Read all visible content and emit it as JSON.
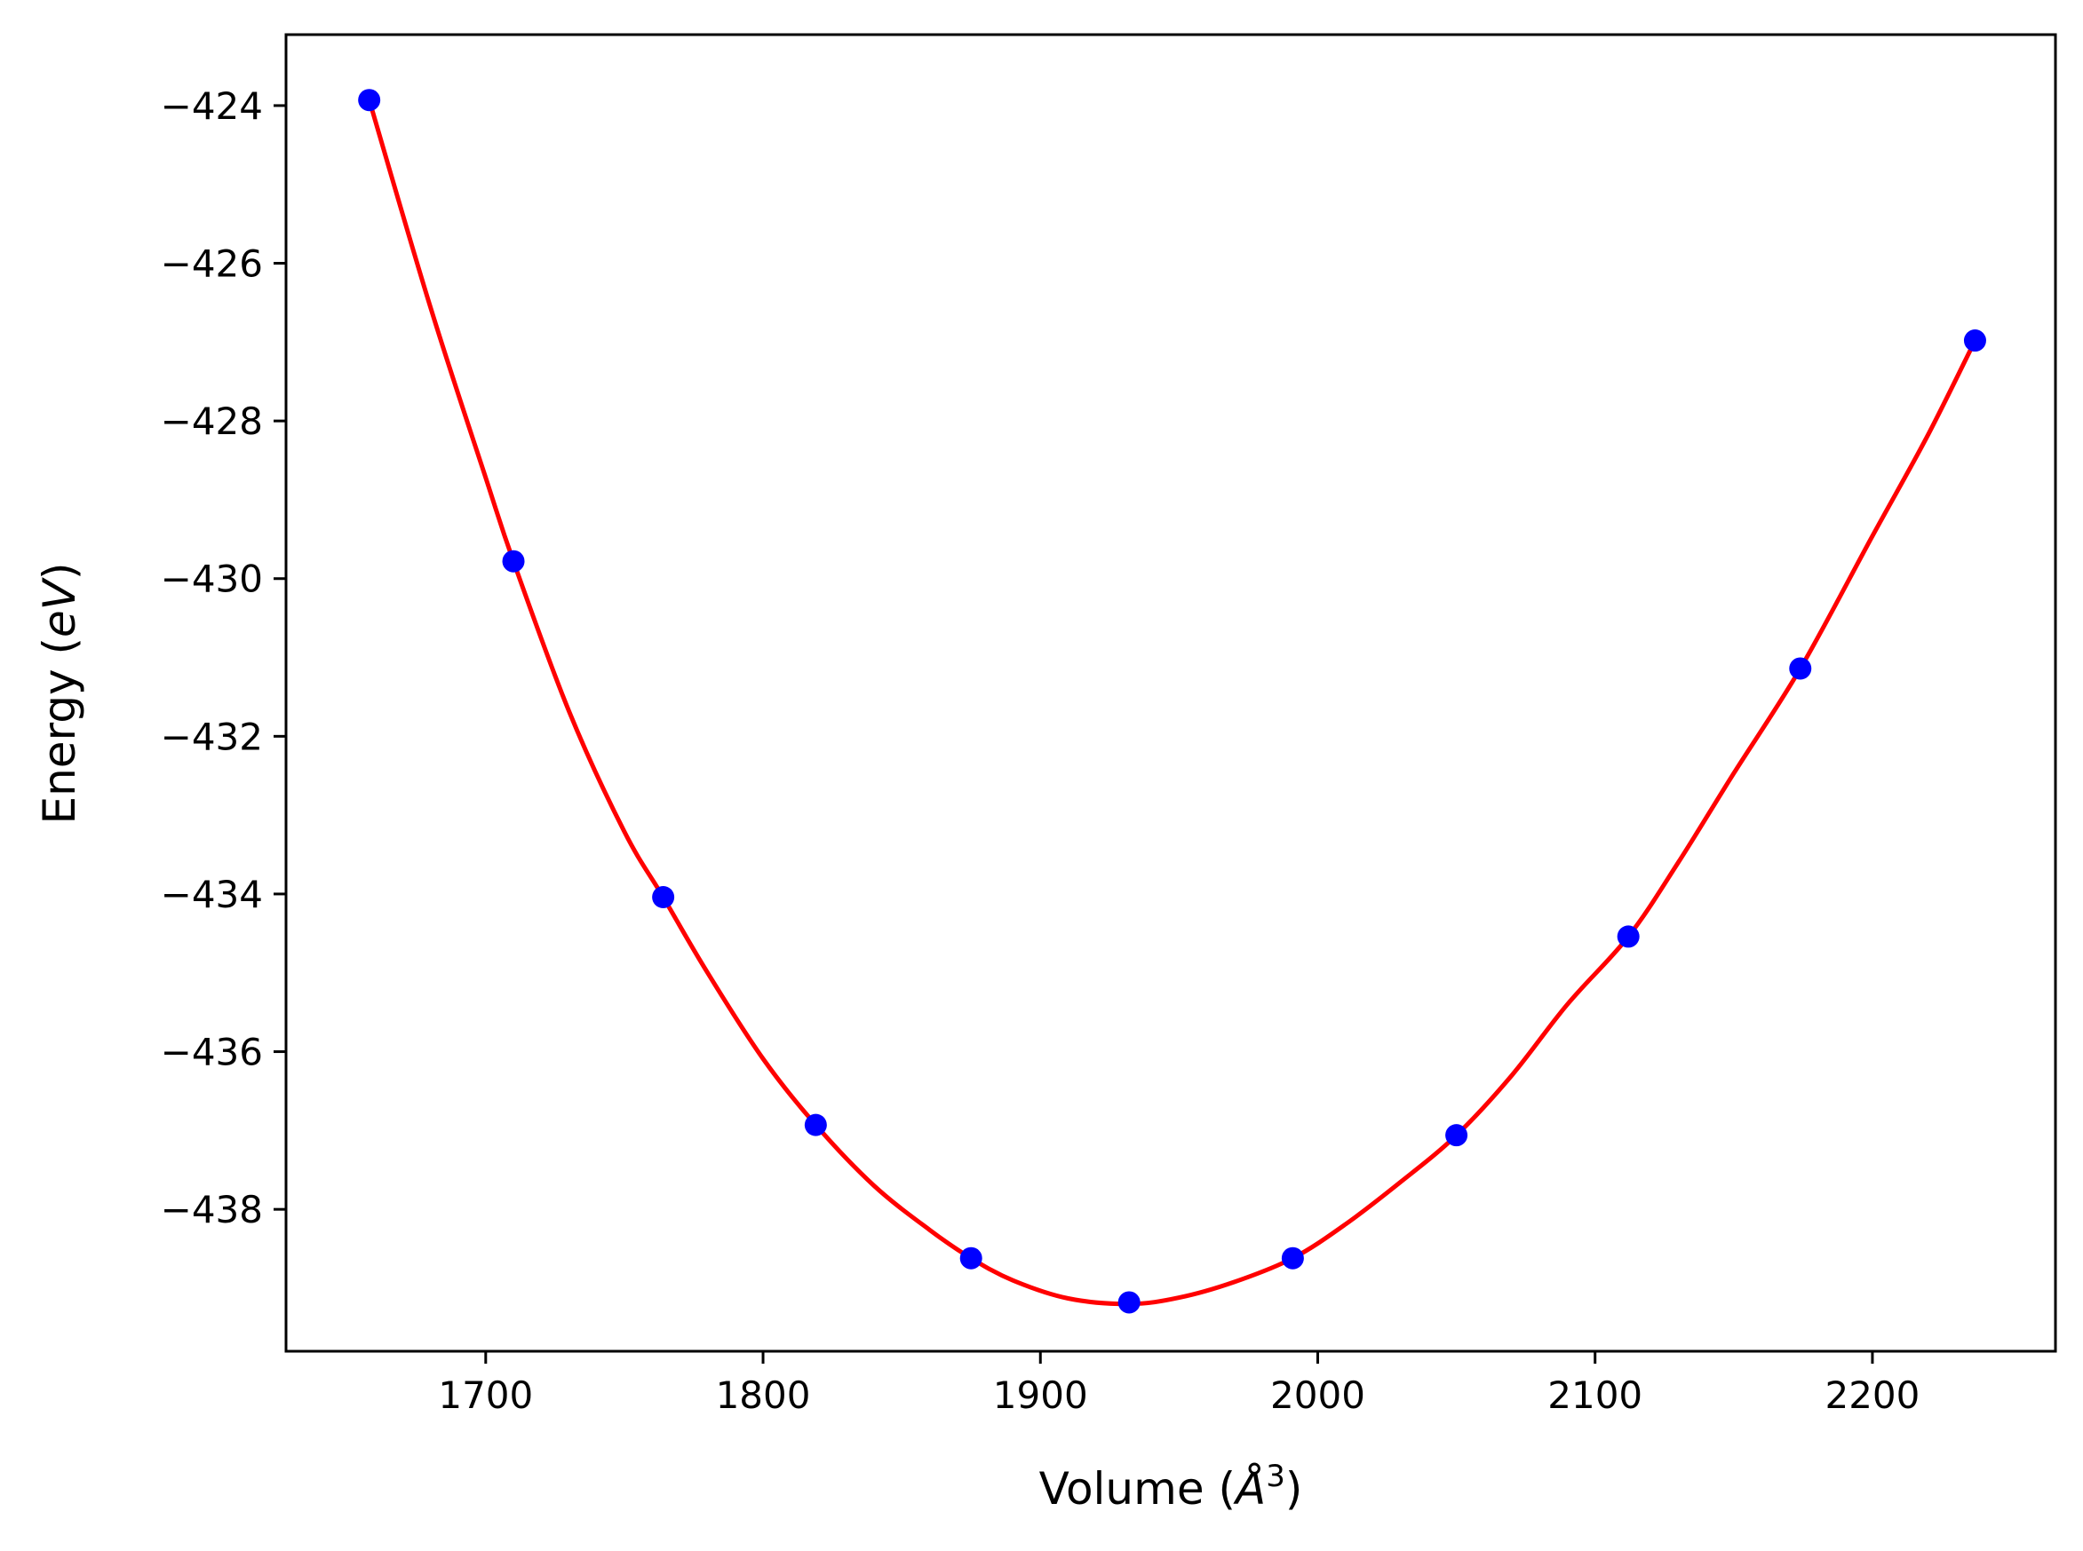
{
  "chart_data": {
    "type": "scatter",
    "title": "",
    "xlabel": {
      "prefix": "Volume (",
      "symbol": "Å",
      "exponent": "3",
      "suffix": ")"
    },
    "ylabel": {
      "prefix": "Energy (",
      "unit": "eV",
      "suffix": ")"
    },
    "xlim": [
      1628,
      2266
    ],
    "ylim": [
      -439.8,
      -423.1
    ],
    "xticks": [
      1700,
      1800,
      1900,
      2000,
      2100,
      2200
    ],
    "yticks": [
      -424,
      -426,
      -428,
      -430,
      -432,
      -434,
      -436,
      -438
    ],
    "xtick_labels": [
      "1700",
      "1800",
      "1900",
      "2000",
      "2100",
      "2200"
    ],
    "ytick_labels": [
      "−424",
      "−426",
      "−428",
      "−430",
      "−432",
      "−434",
      "−436",
      "−438"
    ],
    "grid": false,
    "series": [
      {
        "kind": "points",
        "color": "#0000ff",
        "x": [
          1658,
          1710,
          1764,
          1819,
          1875,
          1932,
          1991,
          2050,
          2112,
          2174,
          2237
        ],
        "y": [
          -423.93,
          -429.78,
          -434.04,
          -436.93,
          -438.62,
          -439.18,
          -438.62,
          -437.06,
          -434.54,
          -431.14,
          -426.98
        ]
      },
      {
        "kind": "fit-curve",
        "color": "#ff0000",
        "x": [
          1658,
          1680,
          1700,
          1710,
          1730,
          1750,
          1764,
          1780,
          1800,
          1819,
          1840,
          1860,
          1875,
          1890,
          1910,
          1932,
          1950,
          1970,
          1991,
          2010,
          2030,
          2050,
          2070,
          2090,
          2112,
          2130,
          2150,
          2174,
          2200,
          2220,
          2237
        ],
        "y": [
          -423.93,
          -426.55,
          -428.72,
          -429.78,
          -431.68,
          -433.21,
          -434.04,
          -435.0,
          -436.09,
          -436.93,
          -437.7,
          -438.26,
          -438.62,
          -438.9,
          -439.13,
          -439.2,
          -439.12,
          -438.92,
          -438.62,
          -438.19,
          -437.65,
          -437.06,
          -436.3,
          -435.4,
          -434.54,
          -433.6,
          -432.47,
          -431.14,
          -429.46,
          -428.18,
          -426.98
        ]
      }
    ]
  }
}
